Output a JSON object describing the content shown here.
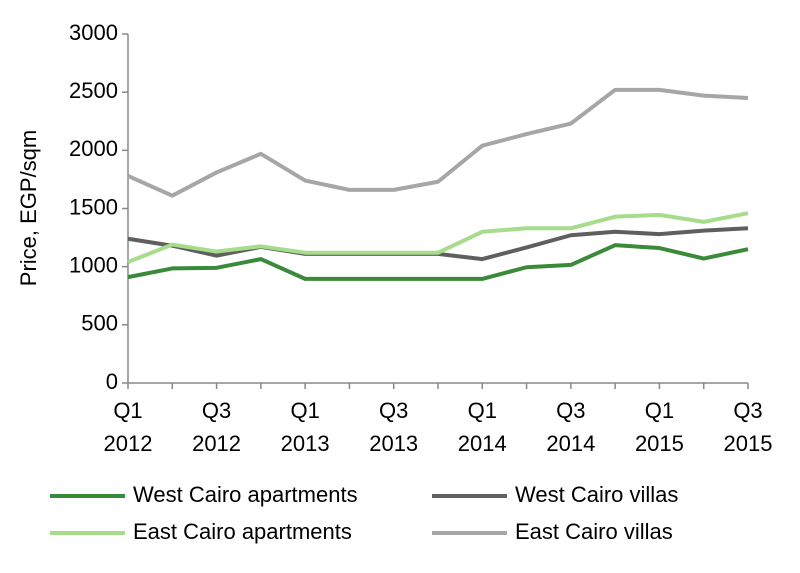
{
  "chart_data": {
    "type": "line",
    "y_label": "Price, EGP/sqm",
    "categories": [
      "Q1 2012",
      null,
      "Q3 2012",
      null,
      "Q1 2013",
      null,
      "Q3 2013",
      null,
      "Q1 2014",
      null,
      "Q3 2014",
      null,
      "Q1 2015",
      null,
      "Q3 2015"
    ],
    "ylim": [
      0,
      3000
    ],
    "yticks": [
      0,
      500,
      1000,
      1500,
      2000,
      2500,
      3000
    ],
    "series": [
      {
        "name": "West Cairo apartments",
        "color": "#3a8a3a",
        "values": [
          910,
          985,
          990,
          1065,
          895,
          895,
          895,
          895,
          895,
          995,
          1015,
          1185,
          1160,
          1070,
          1150
        ]
      },
      {
        "name": "West Cairo villas",
        "color": "#5f5f5f",
        "values": [
          1240,
          1180,
          1095,
          1170,
          1110,
          1110,
          1110,
          1110,
          1065,
          1165,
          1270,
          1300,
          1280,
          1310,
          1330
        ]
      },
      {
        "name": "East Cairo apartments",
        "color": "#a6dc8c",
        "values": [
          1040,
          1190,
          1130,
          1175,
          1120,
          1120,
          1120,
          1120,
          1300,
          1330,
          1330,
          1430,
          1445,
          1385,
          1460
        ]
      },
      {
        "name": "East Cairo villas",
        "color": "#a6a6a6",
        "values": [
          1780,
          1610,
          1810,
          1970,
          1740,
          1660,
          1660,
          1730,
          2040,
          2140,
          2230,
          2520,
          2520,
          2470,
          2450
        ]
      }
    ]
  }
}
